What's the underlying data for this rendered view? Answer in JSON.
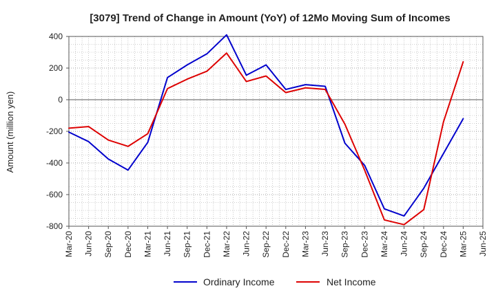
{
  "chart_data": {
    "type": "line",
    "title": "[3079]  Trend of Change in Amount (YoY) of 12Mo Moving Sum of Incomes",
    "xlabel": "",
    "ylabel": "Amount (million yen)",
    "ylim": [
      -800,
      400
    ],
    "yticks": [
      400,
      200,
      0,
      -200,
      -400,
      -600,
      -800
    ],
    "grid": true,
    "legend_position": "bottom-center",
    "x": [
      "Mar-20",
      "Jun-20",
      "Sep-20",
      "Dec-20",
      "Mar-21",
      "Jun-21",
      "Sep-21",
      "Dec-21",
      "Mar-22",
      "Jun-22",
      "Sep-22",
      "Dec-22",
      "Mar-23",
      "Jun-23",
      "Sep-23",
      "Dec-23",
      "Mar-24",
      "Jun-24",
      "Sep-24",
      "Dec-24",
      "Mar-25",
      "Jun-25"
    ],
    "series": [
      {
        "name": "Ordinary Income",
        "color": "#0000cc",
        "values": [
          -205,
          -265,
          -375,
          -445,
          -270,
          140,
          220,
          290,
          410,
          155,
          220,
          65,
          95,
          85,
          -275,
          -415,
          -690,
          -735,
          -560,
          -340,
          -120,
          null
        ]
      },
      {
        "name": "Net Income",
        "color": "#dd0000",
        "values": [
          -180,
          -170,
          -255,
          -295,
          -215,
          70,
          130,
          180,
          295,
          115,
          150,
          45,
          75,
          65,
          -155,
          -445,
          -760,
          -790,
          -695,
          -140,
          240,
          null
        ]
      }
    ]
  }
}
